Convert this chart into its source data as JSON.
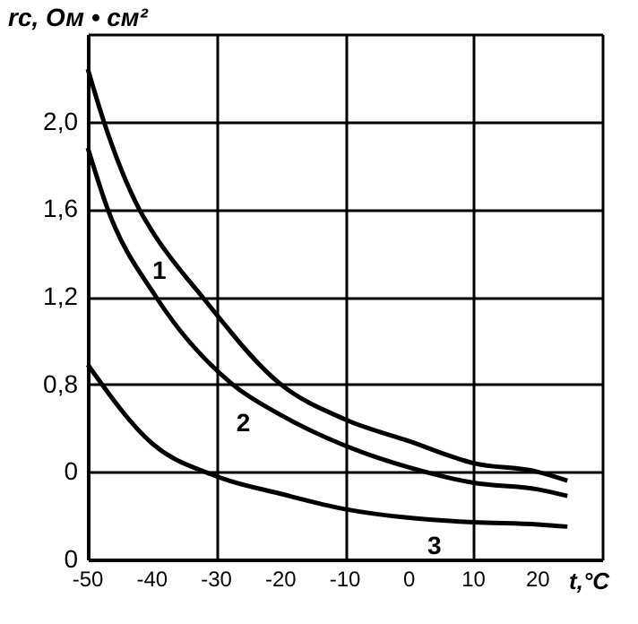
{
  "chart_data": {
    "type": "line",
    "xlabel": "t,°C",
    "ylabel": "rc, Ом • см²",
    "xlim": [
      -50,
      30
    ],
    "xticks": [
      -50,
      -40,
      -30,
      -20,
      -10,
      0,
      10,
      20,
      {
        "value": 30,
        "label": null
      }
    ],
    "ylim": [
      0,
      2.4
    ],
    "yticks": [
      {
        "value": 0,
        "label": "0"
      },
      {
        "value": 0.4,
        "label": "0"
      },
      {
        "value": 0.8,
        "label": "0,8"
      },
      {
        "value": 1.2,
        "label": "1,2"
      },
      {
        "value": 1.6,
        "label": "1,6"
      },
      {
        "value": 2.0,
        "label": "2,0"
      },
      {
        "value": 2.4,
        "label": null
      }
    ],
    "grid": true,
    "marker": "none",
    "line_style": "solid",
    "series": [
      {
        "name": "1",
        "color": "#000000",
        "x": [
          -50,
          -47.5,
          -42,
          -40,
          -32.2,
          -20,
          -10,
          0,
          10,
          20,
          24.6
        ],
        "values": [
          2.24,
          2.0,
          1.6,
          1.5,
          1.2,
          0.8,
          0.64,
          0.54,
          0.44,
          0.4,
          0.36
        ]
      },
      {
        "name": "2",
        "color": "#000000",
        "x": [
          -50,
          -46.9,
          -39.4,
          -27.5,
          -20,
          -10,
          0,
          10,
          20,
          24.6
        ],
        "values": [
          1.88,
          1.6,
          1.2,
          0.8,
          0.66,
          0.52,
          0.42,
          0.35,
          0.32,
          0.29
        ]
      },
      {
        "name": "3",
        "color": "#000000",
        "x": [
          -50,
          -40,
          -30,
          -20,
          -10,
          0,
          10,
          20,
          24.6
        ],
        "values": [
          0.89,
          0.53,
          0.38,
          0.3,
          0.23,
          0.19,
          0.17,
          0.16,
          0.15
        ]
      }
    ]
  }
}
